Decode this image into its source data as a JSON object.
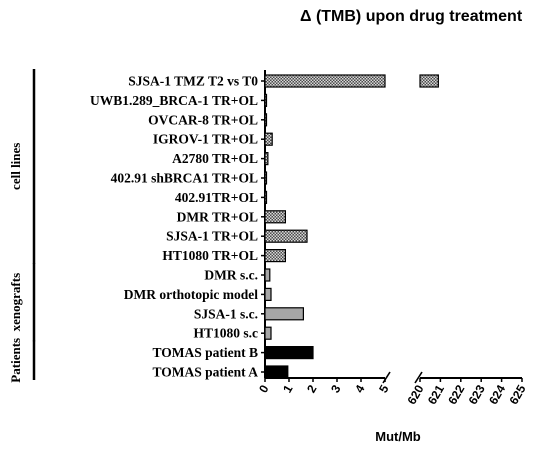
{
  "chart_data": {
    "type": "bar",
    "orientation": "horizontal",
    "title": "Δ (TMB) upon drug treatment",
    "xlabel": "Mut/Mb",
    "x_axis_segments": [
      {
        "range": [
          0,
          5
        ],
        "ticks": [
          "0",
          "1",
          "2",
          "3",
          "4",
          "5"
        ]
      },
      {
        "range": [
          620,
          625
        ],
        "ticks": [
          "620",
          "621",
          "622",
          "623",
          "624",
          "625"
        ]
      }
    ],
    "categories": [
      {
        "label": "SJSA-1 TMZ T2 vs T0",
        "value": 620.9,
        "style": "hatched"
      },
      {
        "label": "UWB1.289_BRCA-1 TR+OL",
        "value": 0.04,
        "style": "hatched"
      },
      {
        "label": "OVCAR-8 TR+OL",
        "value": 0.04,
        "style": "hatched"
      },
      {
        "label": "IGROV-1 TR+OL",
        "value": 0.3,
        "style": "hatched"
      },
      {
        "label": "A2780 TR+OL",
        "value": 0.12,
        "style": "hatched"
      },
      {
        "label": "402.91 shBRCA1 TR+OL",
        "value": 0.05,
        "style": "hatched"
      },
      {
        "label": "402.91TR+OL",
        "value": 0.04,
        "style": "hatched"
      },
      {
        "label": "DMR TR+OL",
        "value": 0.85,
        "style": "hatched"
      },
      {
        "label": "SJSA-1  TR+OL",
        "value": 1.75,
        "style": "hatched"
      },
      {
        "label": "HT1080  TR+OL",
        "value": 0.85,
        "style": "hatched"
      },
      {
        "label": "DMR s.c.",
        "value": 0.2,
        "style": "gray"
      },
      {
        "label": "DMR orthotopic model",
        "value": 0.25,
        "style": "gray"
      },
      {
        "label": "SJSA-1 s.c.",
        "value": 1.6,
        "style": "gray"
      },
      {
        "label": "HT1080 s.c",
        "value": 0.25,
        "style": "gray"
      },
      {
        "label": "TOMAS patient B",
        "value": 2.0,
        "style": "black"
      },
      {
        "label": "TOMAS patient A",
        "value": 0.95,
        "style": "black"
      }
    ],
    "groups": [
      {
        "label": "cell lines",
        "from": 0,
        "to": 9
      },
      {
        "label": "xenografts",
        "from": 10,
        "to": 13
      },
      {
        "label": "Patients",
        "from": 14,
        "to": 15
      }
    ],
    "legend": "none",
    "grid": false
  }
}
